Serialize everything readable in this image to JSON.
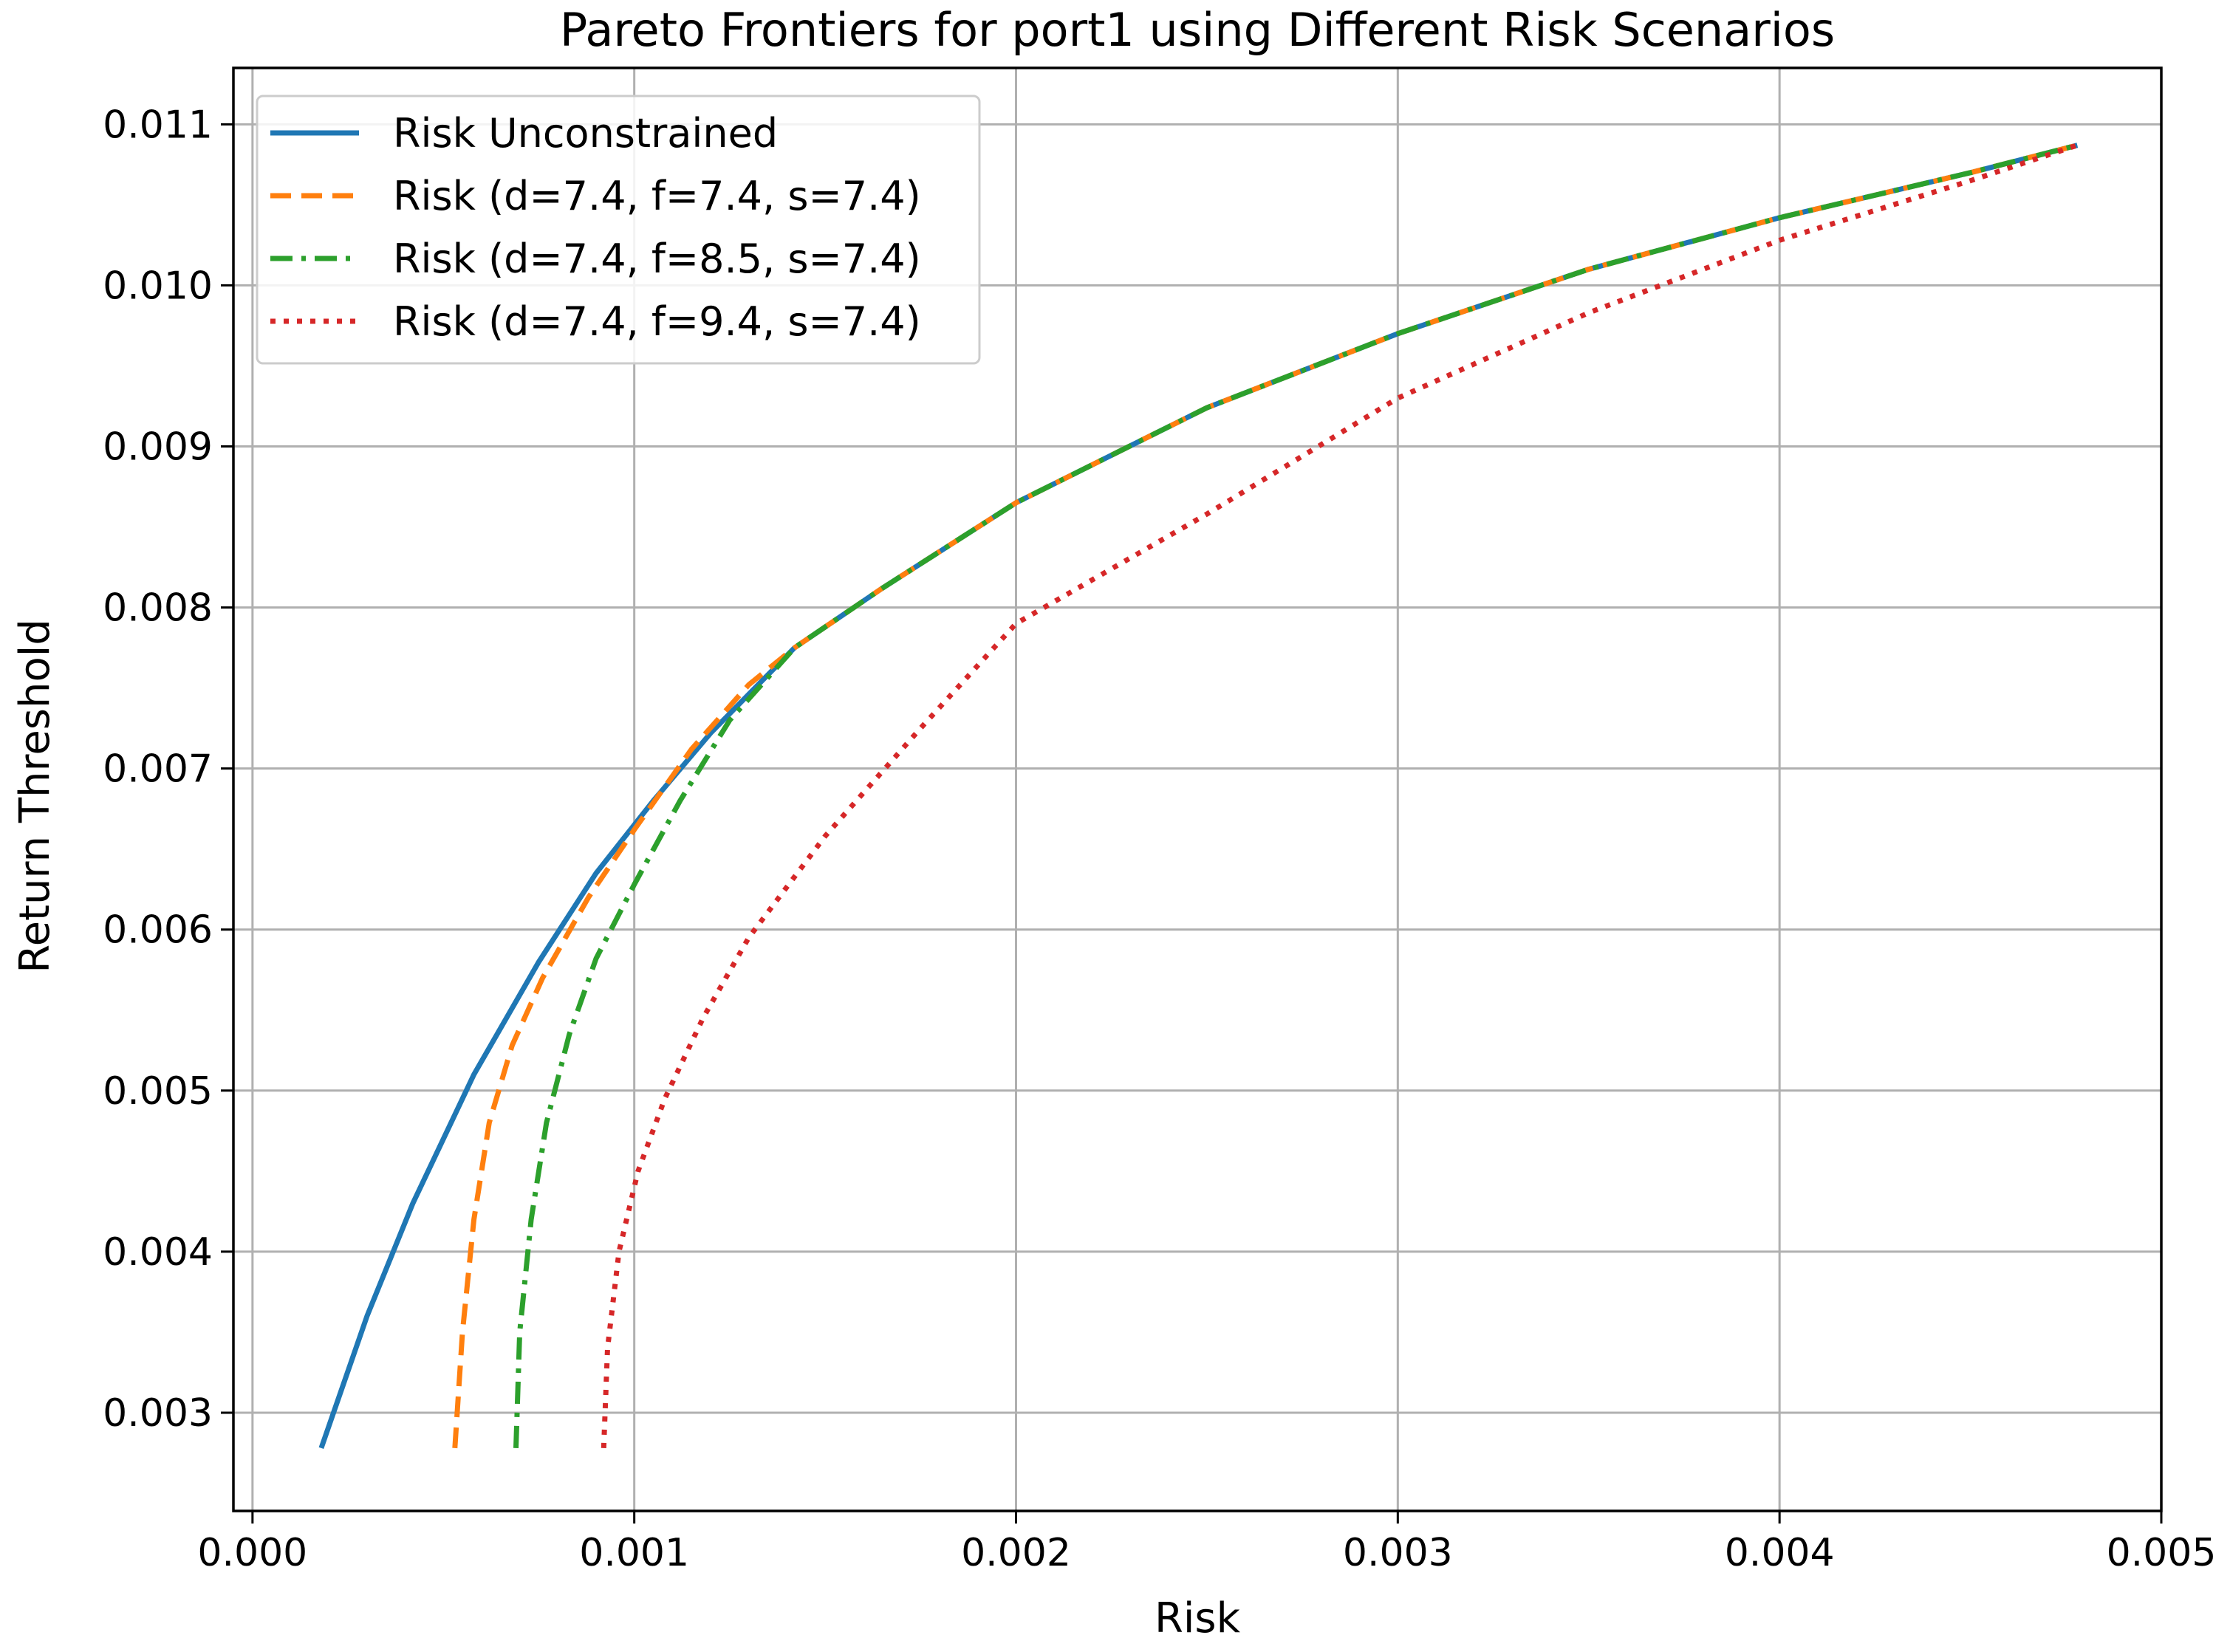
{
  "chart_data": {
    "type": "line",
    "title": "Pareto Frontiers for port1 using Different Risk Scenarios",
    "xlabel": "Risk",
    "ylabel": "Return Threshold",
    "xlim": [
      -5e-05,
      0.005
    ],
    "ylim": [
      0.00239,
      0.01135
    ],
    "x_ticks": [
      0.0,
      0.001,
      0.002,
      0.003,
      0.004,
      0.005
    ],
    "x_tick_labels": [
      "0.000",
      "0.001",
      "0.002",
      "0.003",
      "0.004",
      "0.005"
    ],
    "y_ticks": [
      0.003,
      0.004,
      0.005,
      0.006,
      0.007,
      0.008,
      0.009,
      0.01,
      0.011
    ],
    "y_tick_labels": [
      "0.003",
      "0.004",
      "0.005",
      "0.006",
      "0.007",
      "0.008",
      "0.009",
      "0.010",
      "0.011"
    ],
    "grid": true,
    "legend_position": "upper-left",
    "series": [
      {
        "name": "Risk Unconstrained",
        "color": "#1f77b4",
        "style": "solid",
        "points": [
          [
            0.00018,
            0.00278
          ],
          [
            0.0003,
            0.0036
          ],
          [
            0.00042,
            0.0043
          ],
          [
            0.00058,
            0.0051
          ],
          [
            0.00075,
            0.0058
          ],
          [
            0.0009,
            0.00635
          ],
          [
            0.00105,
            0.0068
          ],
          [
            0.0012,
            0.00722
          ],
          [
            0.00142,
            0.00775
          ],
          [
            0.00165,
            0.00812
          ],
          [
            0.002,
            0.00865
          ],
          [
            0.0025,
            0.00924
          ],
          [
            0.003,
            0.0097
          ],
          [
            0.0035,
            0.0101
          ],
          [
            0.004,
            0.01042
          ],
          [
            0.0045,
            0.0107
          ],
          [
            0.00478,
            0.01087
          ]
        ]
      },
      {
        "name": "Risk (d=7.4, f=7.4, s=7.4)",
        "color": "#ff7f0e",
        "style": "dashed",
        "points": [
          [
            0.00053,
            0.00278
          ],
          [
            0.00055,
            0.0035
          ],
          [
            0.00058,
            0.0042
          ],
          [
            0.00062,
            0.0048
          ],
          [
            0.00068,
            0.00528
          ],
          [
            0.00076,
            0.0057
          ],
          [
            0.00088,
            0.0062
          ],
          [
            0.001,
            0.00662
          ],
          [
            0.00115,
            0.00712
          ],
          [
            0.0013,
            0.00752
          ],
          [
            0.00142,
            0.00775
          ],
          [
            0.00165,
            0.00812
          ],
          [
            0.002,
            0.00865
          ],
          [
            0.0025,
            0.00924
          ],
          [
            0.003,
            0.0097
          ],
          [
            0.0035,
            0.0101
          ],
          [
            0.004,
            0.01042
          ],
          [
            0.0045,
            0.0107
          ],
          [
            0.00478,
            0.01087
          ]
        ]
      },
      {
        "name": "Risk (d=7.4, f=8.5, s=7.4)",
        "color": "#2ca02c",
        "style": "dashdot",
        "points": [
          [
            0.00069,
            0.00278
          ],
          [
            0.0007,
            0.0035
          ],
          [
            0.00073,
            0.0042
          ],
          [
            0.00077,
            0.0048
          ],
          [
            0.00083,
            0.00535
          ],
          [
            0.0009,
            0.00582
          ],
          [
            0.001,
            0.00628
          ],
          [
            0.00112,
            0.0068
          ],
          [
            0.00125,
            0.0073
          ],
          [
            0.00142,
            0.00775
          ],
          [
            0.00165,
            0.00812
          ],
          [
            0.002,
            0.00865
          ],
          [
            0.0025,
            0.00924
          ],
          [
            0.003,
            0.0097
          ],
          [
            0.0035,
            0.0101
          ],
          [
            0.004,
            0.01042
          ],
          [
            0.0045,
            0.0107
          ],
          [
            0.00478,
            0.01087
          ]
        ]
      },
      {
        "name": "Risk (d=7.4, f=9.4, s=7.4)",
        "color": "#d62728",
        "style": "dotted",
        "points": [
          [
            0.00092,
            0.00278
          ],
          [
            0.00093,
            0.0034
          ],
          [
            0.00096,
            0.004
          ],
          [
            0.00101,
            0.0045
          ],
          [
            0.00108,
            0.00495
          ],
          [
            0.00118,
            0.00545
          ],
          [
            0.0013,
            0.00595
          ],
          [
            0.0015,
            0.00658
          ],
          [
            0.00175,
            0.00725
          ],
          [
            0.002,
            0.0079
          ],
          [
            0.0025,
            0.00858
          ],
          [
            0.003,
            0.0093
          ],
          [
            0.0035,
            0.00983
          ],
          [
            0.004,
            0.01028
          ],
          [
            0.0045,
            0.01065
          ],
          [
            0.00478,
            0.01087
          ]
        ]
      }
    ]
  }
}
